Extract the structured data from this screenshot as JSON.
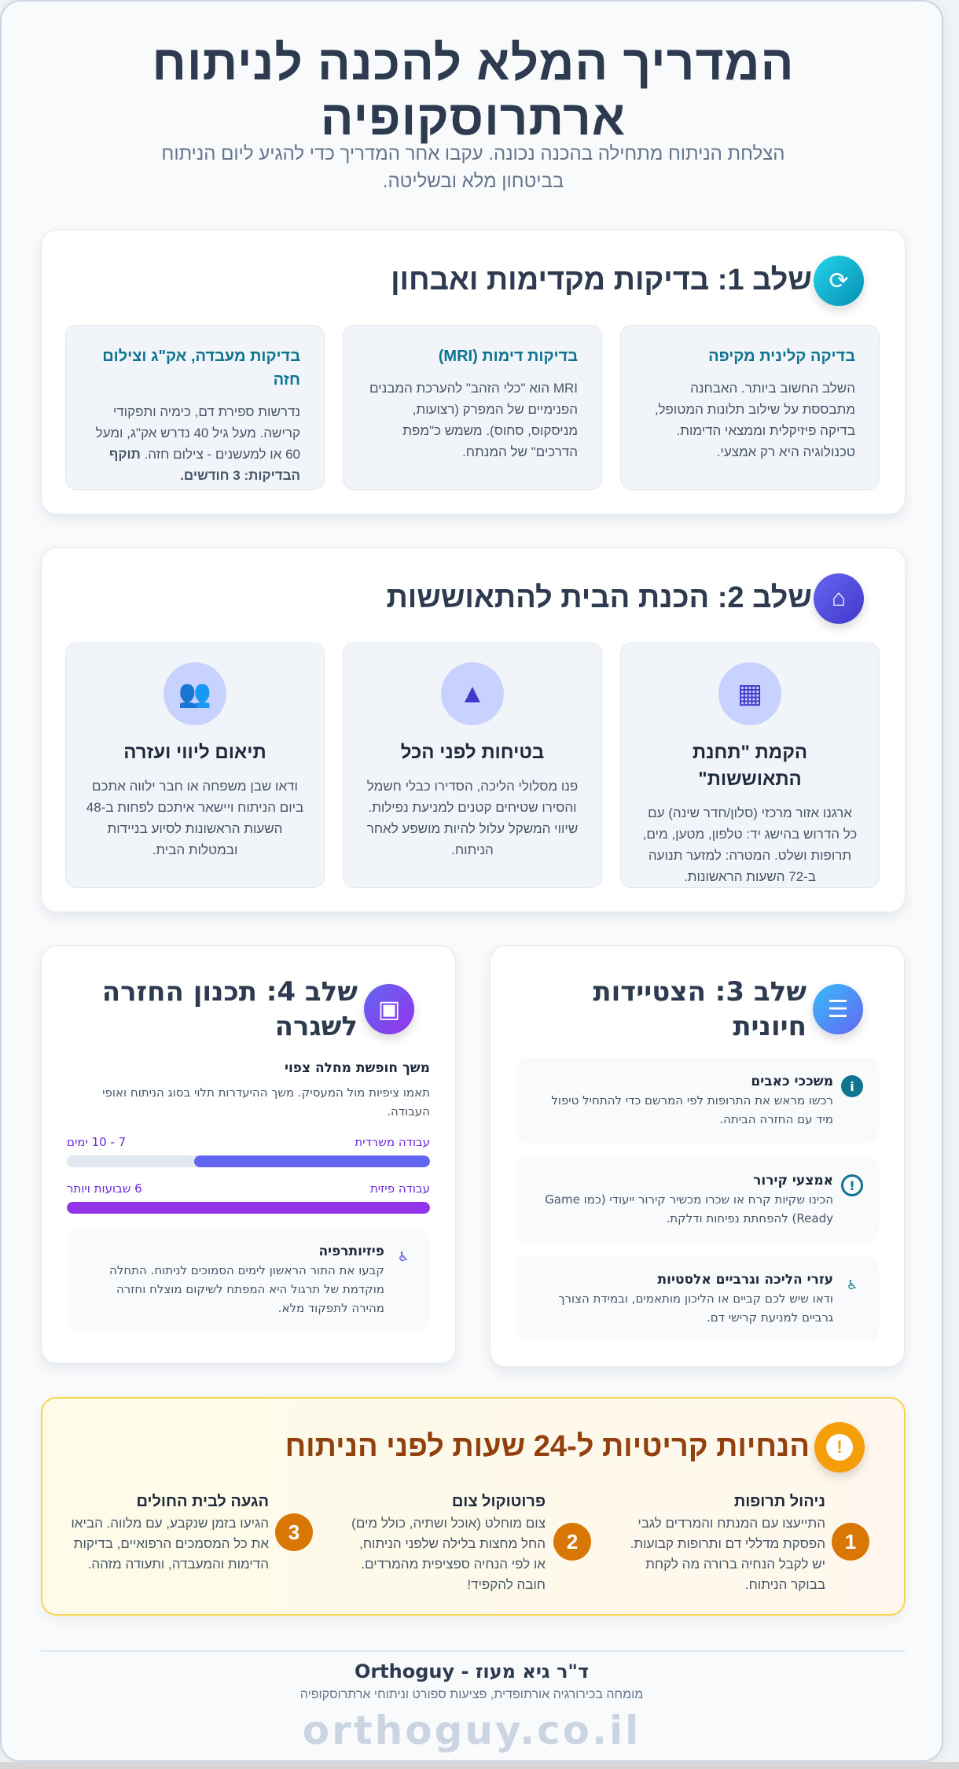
{
  "header": {
    "title": "המדריך המלא להכנה לניתוח ארתרוסקופיה",
    "subtitle": "הצלחת הניתוח מתחילה בהכנה נכונה. עקבו אחר המדריך כדי להגיע ליום הניתוח בביטחון מלא ובשליטה."
  },
  "colors": {
    "text": "#2d3a4f",
    "teal": "#0e7490",
    "indigo": "#4f46e5",
    "purple": "#9333ea",
    "amber": "#d97706",
    "critical_title": "#92400e"
  },
  "step1": {
    "title": "שלב 1: בדיקות מקדימות ואבחון",
    "icon": "sync-icon",
    "items": [
      {
        "title": "בדיקה קלינית מקיפה",
        "text": "השלב החשוב ביותר. האבחנה מתבססת על שילוב תלונות המטופל, בדיקה פיזיקלית וממצאי הדימות. טכנולוגיה היא רק אמצעי."
      },
      {
        "title": "בדיקות דימות (MRI)",
        "text": "MRI הוא \"כלי הזהב\" להערכת המבנים הפנימיים של המפרק (רצועות, מניסקוס, סחוס). משמש כ\"מפת הדרכים\" של המנתח."
      },
      {
        "title": "בדיקות מעבדה, אק\"ג וצילום חזה",
        "text": "נדרשות ספירת דם, כימיה ותפקודי קרישה. מעל גיל 40 נדרש אק\"ג, ומעל 60 או למעשנים - צילום חזה.",
        "bold": "תוקף הבדיקות: 3 חודשים."
      }
    ]
  },
  "step2": {
    "title": "שלב 2: הכנת הבית להתאוששות",
    "icon": "home-icon",
    "items": [
      {
        "icon": "station-icon",
        "title": "הקמת \"תחנת התאוששות\"",
        "text": "ארגנו אזור מרכזי (סלון/חדר שינה) עם כל הדרוש בהישג יד: טלפון, מטען, מים, תרופות ושלט. המטרה: למזער תנועה ב-72 השעות הראשונות."
      },
      {
        "icon": "warning-icon",
        "title": "בטיחות לפני הכל",
        "text": "פנו מסלולי הליכה, הסדירו כבלי חשמל והסירו שטיחים קטנים למניעת נפילות. שיווי המשקל עלול להיות מושפע לאחר הניתוח."
      },
      {
        "icon": "people-icon",
        "title": "תיאום ליווי ועזרה",
        "text": "ודאו שבן משפחה או חבר ילווה אתכם ביום הניתוח ויישאר איתכם לפחות ב-48 השעות הראשונות לסיוע בניידות ובמטלות הבית."
      }
    ]
  },
  "step3": {
    "title": "שלב 3: הצטיידות חיונית",
    "icon": "equipment-icon",
    "items": [
      {
        "icon": "info-icon",
        "title": "משככי כאבים",
        "text": "רכשו מראש את התרופות לפי המרשם כדי להתחיל טיפול מיד עם החזרה הביתה."
      },
      {
        "icon": "alert-circle-icon",
        "title": "אמצעי קירור",
        "text": "הכינו שקיות קרח או שכרו מכשיר קירור ייעודי (כמו Game Ready) להפחתת נפיחות ודלקת."
      },
      {
        "icon": "accessibility-icon",
        "title": "עזרי הליכה וגרביים אלסטיות",
        "text": "ודאו שיש לכם קביים או הליכון מותאמים, ובמידת הצורך גרביים למניעת קרישי דם."
      }
    ]
  },
  "step4": {
    "title": "שלב 4: תכנון החזרה לשגרה",
    "icon": "calendar-icon",
    "leave_title": "משך חופשת מחלה צפוי",
    "leave_text": "תאמו ציפיות מול המעסיק. משך ההיעדרות תלוי בסוג הניתוח ואופי העבודה.",
    "bars": [
      {
        "label": "עבודה משרדית",
        "value": "7 - 10 ימים",
        "fill_percent": 65,
        "color": "#6366f1"
      },
      {
        "label": "עבודה פיזית",
        "value": "6 שבועות ויותר",
        "fill_percent": 100,
        "color": "#9333ea"
      }
    ],
    "physio": {
      "icon": "accessibility-icon",
      "title": "פיזיותרפיה",
      "text": "קבעו את התור הראשון לימים הסמוכים לניתוח. התחלה מוקדמת של תרגול היא המפתח לשיקום מוצלח וחזרה מהירה לתפקוד מלא."
    }
  },
  "critical": {
    "title": "הנחיות קריטיות ל-24 שעות לפני הניתוח",
    "icon": "exclamation-icon",
    "items": [
      {
        "num": "1",
        "title": "ניהול תרופות",
        "text": "התייעצו עם המנתח והמרדים לגבי הפסקת מדללי דם ותרופות קבועות. יש לקבל הנחיה ברורה מה לקחת בבוקר הניתוח."
      },
      {
        "num": "2",
        "title": "פרוטוקול צום",
        "text": "צום מוחלט (אוכל ושתיה, כולל מים) החל מחצות בלילה שלפני הניתוח, או לפי הנחיה ספציפית מהמרדים. חובה להקפיד!"
      },
      {
        "num": "3",
        "title": "הגעה לבית החולים",
        "text": "הגיעו בזמן שנקבע, עם מלווה. הביאו את כל המסמכים הרפואיים, בדיקות הדימות והמעבדה, ותעודה מזהה."
      }
    ]
  },
  "footer": {
    "name": "ד\"ר גיא מעוז - Orthoguy",
    "tagline": "מומחה בכירורגיה אורתופדית, פציעות ספורט וניתוחי ארתרוסקופיה",
    "watermark": "orthoguy.co.il"
  }
}
